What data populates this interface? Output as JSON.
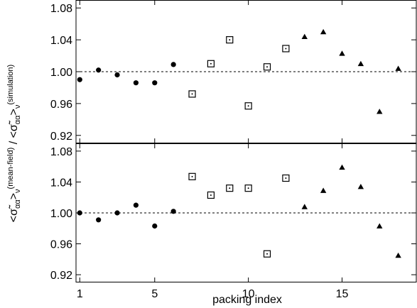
{
  "chart_data": {
    "type": "scatter",
    "xlabel": "packing index",
    "ylabel": {
      "prefix": "<σ̃",
      "sub_aa": "αα",
      "close": ">",
      "sub_v": "ν",
      "num_tag": "(mean-field)",
      "divider": " / ",
      "den_tag": "(simulation)"
    },
    "xlim": [
      0.8,
      19
    ],
    "x_ticks": [
      1,
      5,
      10,
      15
    ],
    "reference_line": 1.0,
    "panels": [
      {
        "ylim": [
          0.91,
          1.09
        ],
        "y_ticks": [
          0.92,
          0.96,
          1.0,
          1.04,
          1.08
        ],
        "y_tick_labels": [
          "0.92",
          "0.96",
          "1.00",
          "1.04",
          "1.08"
        ],
        "series": [
          {
            "marker": "circle",
            "x": [
              1,
              2,
              3,
              4,
              5,
              6
            ],
            "y": [
              0.99,
              1.002,
              0.996,
              0.986,
              0.986,
              1.009
            ]
          },
          {
            "marker": "square-dot",
            "x": [
              7,
              8,
              9,
              10,
              11,
              12
            ],
            "y": [
              0.972,
              1.01,
              1.04,
              0.957,
              1.006,
              1.029
            ]
          },
          {
            "marker": "triangle",
            "x": [
              13,
              14,
              15,
              16,
              17,
              18
            ],
            "y": [
              1.044,
              1.05,
              1.023,
              1.01,
              0.95,
              1.004
            ]
          }
        ]
      },
      {
        "ylim": [
          0.91,
          1.09
        ],
        "y_ticks": [
          0.92,
          0.96,
          1.0,
          1.04,
          1.08
        ],
        "y_tick_labels": [
          "0.92",
          "0.96",
          "1.00",
          "1.04",
          "1.08"
        ],
        "series": [
          {
            "marker": "circle",
            "x": [
              1,
              2,
              3,
              4,
              5,
              6
            ],
            "y": [
              1.0,
              0.991,
              1.0,
              1.01,
              0.983,
              1.002
            ]
          },
          {
            "marker": "square-dot",
            "x": [
              7,
              8,
              9,
              10,
              11,
              12
            ],
            "y": [
              1.047,
              1.023,
              1.032,
              1.032,
              0.947,
              1.045
            ]
          },
          {
            "marker": "triangle",
            "x": [
              13,
              14,
              15,
              16,
              17,
              18
            ],
            "y": [
              1.008,
              1.029,
              1.059,
              1.034,
              0.983,
              0.945
            ]
          }
        ]
      }
    ]
  }
}
